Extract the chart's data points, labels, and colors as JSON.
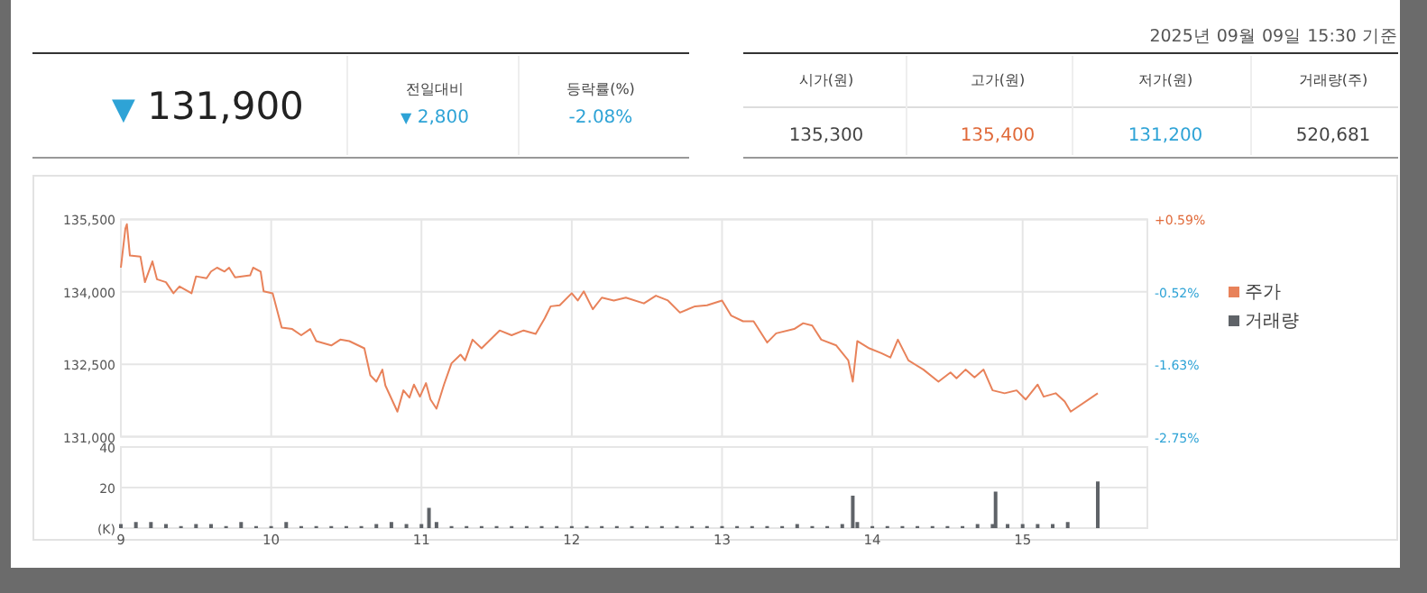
{
  "chart_data": [
    {
      "type": "other",
      "annotations": [
        "2025년 09월 09일 15:30 기준",
        "▼ 131,900",
        "전일대비",
        "▼ 2,800",
        "등락률(%)",
        "-2.08%",
        "시가(원)",
        "고가(원)",
        "저가(원)",
        "거래량(주)",
        "135,300",
        "135,400",
        "131,200",
        "520,681"
      ]
    },
    {
      "type": "line",
      "legend": "right",
      "grid": true,
      "tick_labels": "y",
      "x": [
        9.0,
        9.03,
        9.04,
        9.06,
        9.13,
        9.16,
        9.21,
        9.24,
        9.3,
        9.35,
        9.39,
        9.47,
        9.5,
        9.57,
        9.6,
        9.64,
        9.69,
        9.72,
        9.76,
        9.86,
        9.88,
        9.93,
        9.95,
        10.01,
        10.07,
        10.14,
        10.2,
        10.26,
        10.3,
        10.4,
        10.46,
        10.52,
        10.62,
        10.66,
        10.7,
        10.74,
        10.76,
        10.84,
        10.88,
        10.92,
        10.95,
        10.99,
        11.03,
        11.06,
        11.1,
        11.15,
        11.2,
        11.26,
        11.29,
        11.34,
        11.4,
        11.52,
        11.6,
        11.68,
        11.76,
        11.82,
        11.86,
        11.92,
        12.0,
        12.04,
        12.08,
        12.14,
        12.2,
        12.28,
        12.36,
        12.48,
        12.56,
        12.64,
        12.72,
        12.82,
        12.9,
        13.0,
        13.06,
        13.14,
        13.21,
        13.3,
        13.36,
        13.48,
        13.54,
        13.6,
        13.66,
        13.76,
        13.84,
        13.87,
        13.9,
        13.98,
        14.06,
        14.12,
        14.17,
        14.24,
        14.34,
        14.44,
        14.52,
        14.56,
        14.62,
        14.68,
        14.74,
        14.8,
        14.88,
        14.96,
        15.02,
        15.1,
        15.14,
        15.22,
        15.28,
        15.32,
        15.5
      ],
      "xlim": [
        9,
        15.83
      ],
      "xticks": [
        9,
        10,
        11,
        12,
        13,
        14,
        15
      ],
      "ylim": [
        131000,
        135500
      ],
      "yticks": [
        {
          "value": 131000,
          "label": "131,000"
        },
        {
          "value": 132500,
          "label": "132,500"
        },
        {
          "value": 134000,
          "label": "134,000"
        },
        {
          "value": 135500,
          "label": "135,500"
        }
      ],
      "y2lim": [
        -2.75,
        0.59
      ],
      "y2ticks": [
        {
          "value": -2.75,
          "label": "-2.75%"
        },
        {
          "value": -1.63,
          "label": "-1.63%"
        },
        {
          "value": -0.52,
          "label": "-0.52%"
        },
        {
          "value": 0.59,
          "label": "+0.59%"
        }
      ],
      "series": [
        {
          "name": "주가",
          "color": "#e8825a",
          "values": [
            134500,
            135310,
            135400,
            134750,
            134730,
            134200,
            134630,
            134260,
            134200,
            133970,
            134110,
            133970,
            134320,
            134280,
            134420,
            134500,
            134420,
            134500,
            134300,
            134340,
            134500,
            134420,
            134010,
            133970,
            133260,
            133230,
            133100,
            133230,
            132980,
            132890,
            133010,
            132980,
            132830,
            132270,
            132140,
            132390,
            132060,
            131520,
            131960,
            131810,
            132080,
            131830,
            132110,
            131770,
            131580,
            132080,
            132520,
            132700,
            132580,
            133010,
            132830,
            133200,
            133100,
            133200,
            133130,
            133450,
            133700,
            133720,
            133970,
            133820,
            134010,
            133640,
            133880,
            133820,
            133880,
            133760,
            133920,
            133820,
            133570,
            133700,
            133720,
            133820,
            133510,
            133390,
            133390,
            132950,
            133140,
            133230,
            133350,
            133300,
            133010,
            132890,
            132580,
            132140,
            132980,
            132830,
            132730,
            132640,
            133010,
            132580,
            132390,
            132140,
            132330,
            132210,
            132390,
            132230,
            132390,
            131960,
            131900,
            131960,
            131770,
            132080,
            131830,
            131900,
            131730,
            131520,
            131900
          ]
        }
      ]
    },
    {
      "type": "bar",
      "legend": "right",
      "grid": true,
      "x": [
        9.0,
        9.1,
        9.2,
        9.3,
        9.4,
        9.5,
        9.6,
        9.7,
        9.8,
        9.9,
        10.0,
        10.1,
        10.2,
        10.3,
        10.4,
        10.5,
        10.6,
        10.7,
        10.8,
        10.9,
        11.0,
        11.05,
        11.1,
        11.2,
        11.3,
        11.4,
        11.5,
        11.6,
        11.7,
        11.8,
        11.9,
        12.0,
        12.1,
        12.2,
        12.3,
        12.4,
        12.5,
        12.6,
        12.7,
        12.8,
        12.9,
        13.0,
        13.1,
        13.2,
        13.3,
        13.4,
        13.5,
        13.6,
        13.7,
        13.8,
        13.87,
        13.9,
        14.0,
        14.1,
        14.2,
        14.3,
        14.4,
        14.5,
        14.6,
        14.7,
        14.8,
        14.82,
        14.9,
        15.0,
        15.1,
        15.2,
        15.3,
        15.5
      ],
      "xlim": [
        9,
        15.83
      ],
      "xticks": [
        9,
        10,
        11,
        12,
        13,
        14,
        15
      ],
      "ylim": [
        0,
        40
      ],
      "yticks": [
        {
          "value": 0,
          "label": "(K)"
        },
        20,
        40
      ],
      "series": [
        {
          "name": "거래량",
          "color": "#5f6368",
          "values": [
            2,
            3,
            3,
            2,
            1,
            2,
            2,
            1,
            3,
            1,
            1,
            3,
            1,
            1,
            1,
            1,
            1,
            2,
            3,
            2,
            2,
            10,
            3,
            1,
            1,
            1,
            1,
            1,
            1,
            1,
            1,
            1,
            1,
            1,
            1,
            1,
            1,
            1,
            1,
            1,
            1,
            1,
            1,
            1,
            1,
            1,
            2,
            1,
            1,
            2,
            16,
            3,
            1,
            1,
            1,
            1,
            1,
            1,
            1,
            2,
            2,
            18,
            2,
            2,
            2,
            2,
            3,
            23
          ]
        }
      ]
    }
  ]
}
